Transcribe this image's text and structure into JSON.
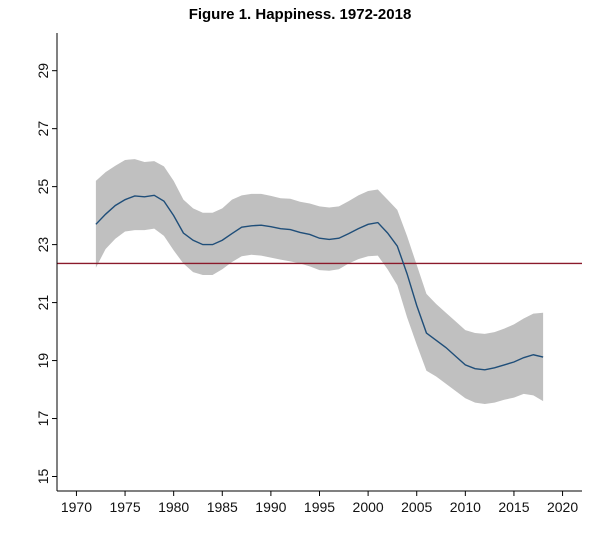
{
  "chart_data": {
    "type": "area",
    "title": "Figure 1.  Happiness. 1972-2018",
    "xlabel": "",
    "ylabel": "",
    "xlim": [
      1968,
      2022
    ],
    "ylim": [
      14.5,
      30.3
    ],
    "x_ticks": [
      1970,
      1975,
      1980,
      1985,
      1990,
      1995,
      2000,
      2005,
      2010,
      2015,
      2020
    ],
    "y_ticks": [
      15,
      17,
      19,
      21,
      23,
      25,
      27,
      29
    ],
    "grid": false,
    "reference_line": {
      "y": 22.35,
      "color": "#8b1a2b"
    },
    "series": [
      {
        "x": [
          1972,
          1973,
          1974,
          1975,
          1976,
          1977,
          1978,
          1979,
          1980,
          1981,
          1982,
          1983,
          1984,
          1985,
          1986,
          1987,
          1988,
          1989,
          1990,
          1991,
          1992,
          1993,
          1994,
          1995,
          1996,
          1997,
          1998,
          1999,
          2000,
          2001,
          2002,
          2003,
          2004,
          2005,
          2006,
          2007,
          2008,
          2009,
          2010,
          2011,
          2012,
          2013,
          2014,
          2015,
          2016,
          2017,
          2018
        ],
        "y": [
          23.7,
          24.05,
          24.35,
          24.55,
          24.68,
          24.65,
          24.7,
          24.5,
          24.0,
          23.4,
          23.15,
          23.0,
          23.0,
          23.15,
          23.38,
          23.6,
          23.65,
          23.67,
          23.62,
          23.55,
          23.52,
          23.42,
          23.35,
          23.22,
          23.18,
          23.22,
          23.38,
          23.55,
          23.7,
          23.76,
          23.4,
          22.95,
          22.0,
          20.9,
          19.95,
          19.7,
          19.45,
          19.15,
          18.85,
          18.72,
          18.68,
          18.75,
          18.85,
          18.95,
          19.1,
          19.2,
          19.12
        ],
        "lower": [
          22.2,
          22.85,
          23.2,
          23.45,
          23.5,
          23.5,
          23.55,
          23.3,
          22.8,
          22.35,
          22.05,
          21.95,
          21.95,
          22.15,
          22.4,
          22.6,
          22.65,
          22.62,
          22.55,
          22.48,
          22.42,
          22.35,
          22.25,
          22.12,
          22.1,
          22.15,
          22.35,
          22.5,
          22.6,
          22.62,
          22.15,
          21.6,
          20.5,
          19.55,
          18.65,
          18.45,
          18.2,
          17.95,
          17.7,
          17.55,
          17.5,
          17.55,
          17.65,
          17.72,
          17.85,
          17.8,
          17.6
        ],
        "upper": [
          25.2,
          25.5,
          25.72,
          25.92,
          25.95,
          25.85,
          25.88,
          25.7,
          25.2,
          24.55,
          24.25,
          24.1,
          24.1,
          24.25,
          24.55,
          24.7,
          24.75,
          24.75,
          24.68,
          24.6,
          24.58,
          24.48,
          24.42,
          24.32,
          24.28,
          24.32,
          24.5,
          24.7,
          24.85,
          24.9,
          24.55,
          24.2,
          23.3,
          22.3,
          21.3,
          20.95,
          20.65,
          20.35,
          20.05,
          19.95,
          19.92,
          19.98,
          20.1,
          20.25,
          20.45,
          20.62,
          20.65
        ]
      }
    ],
    "colors": {
      "line": "#1f4e79",
      "band": "#c0c0c0",
      "reference": "#8b1a2b",
      "axis": "#000000"
    }
  }
}
